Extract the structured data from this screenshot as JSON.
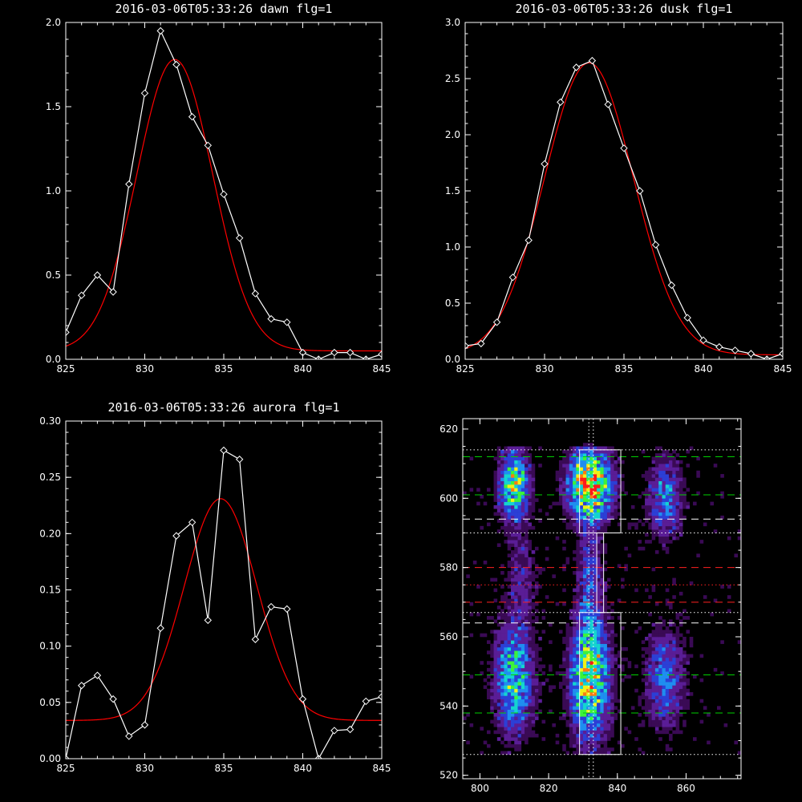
{
  "chart_data": [
    {
      "type": "line",
      "title": "2016-03-06T05:33:26 dawn flg=1",
      "xlim": [
        825,
        845
      ],
      "ylim": [
        0,
        2.0
      ],
      "xticks": [
        825,
        830,
        835,
        840,
        845
      ],
      "yticks": [
        0.0,
        0.5,
        1.0,
        1.5,
        2.0
      ],
      "xtick_labels": [
        "825",
        "830",
        "835",
        "840",
        "845"
      ],
      "ytick_labels": [
        "0.0",
        "0.5",
        "1.0",
        "1.5",
        "2.0"
      ],
      "series": [
        {
          "kind": "data",
          "color": "#ffffff",
          "marker": "diamond",
          "x": [
            825,
            826,
            827,
            828,
            829,
            830,
            831,
            832,
            833,
            834,
            835,
            836,
            837,
            838,
            839,
            840,
            841,
            842,
            843,
            844,
            845
          ],
          "y": [
            0.16,
            0.38,
            0.5,
            0.4,
            1.04,
            1.58,
            1.95,
            1.75,
            1.44,
            1.27,
            0.98,
            0.72,
            0.39,
            0.24,
            0.22,
            0.04,
            0.0,
            0.04,
            0.04,
            0.0,
            0.03
          ]
        },
        {
          "kind": "fit",
          "color": "#ff0000",
          "gaussian": {
            "a": 1.73,
            "mu": 831.9,
            "sigma": 2.4,
            "c": 0.05
          }
        }
      ]
    },
    {
      "type": "line",
      "title": "2016-03-06T05:33:26 dusk flg=1",
      "xlim": [
        825,
        845
      ],
      "ylim": [
        0,
        3.0
      ],
      "xticks": [
        825,
        830,
        835,
        840,
        845
      ],
      "yticks": [
        0.0,
        0.5,
        1.0,
        1.5,
        2.0,
        2.5,
        3.0
      ],
      "xtick_labels": [
        "825",
        "830",
        "835",
        "840",
        "845"
      ],
      "ytick_labels": [
        "0.0",
        "0.5",
        "1.0",
        "1.5",
        "2.0",
        "2.5",
        "3.0"
      ],
      "series": [
        {
          "kind": "data",
          "color": "#ffffff",
          "marker": "diamond",
          "x": [
            825,
            826,
            827,
            828,
            829,
            830,
            831,
            832,
            833,
            834,
            835,
            836,
            837,
            838,
            839,
            840,
            841,
            842,
            843,
            844,
            845
          ],
          "y": [
            0.12,
            0.14,
            0.33,
            0.73,
            1.06,
            1.74,
            2.29,
            2.6,
            2.66,
            2.27,
            1.88,
            1.5,
            1.02,
            0.66,
            0.37,
            0.17,
            0.11,
            0.08,
            0.05,
            0.0,
            0.05
          ]
        },
        {
          "kind": "fit",
          "color": "#ff0000",
          "gaussian": {
            "a": 2.6,
            "mu": 832.8,
            "sigma": 2.8,
            "c": 0.04
          }
        }
      ]
    },
    {
      "type": "line",
      "title": "2016-03-06T05:33:26 aurora flg=1",
      "xlim": [
        825,
        845
      ],
      "ylim": [
        0,
        0.3
      ],
      "xticks": [
        825,
        830,
        835,
        840,
        845
      ],
      "yticks": [
        0.0,
        0.05,
        0.1,
        0.15,
        0.2,
        0.25,
        0.3
      ],
      "xtick_labels": [
        "825",
        "830",
        "835",
        "840",
        "845"
      ],
      "ytick_labels": [
        "0.00",
        "0.05",
        "0.10",
        "0.15",
        "0.20",
        "0.25",
        "0.30"
      ],
      "series": [
        {
          "kind": "data",
          "color": "#ffffff",
          "marker": "diamond",
          "x": [
            825,
            826,
            827,
            828,
            829,
            830,
            831,
            832,
            833,
            834,
            835,
            836,
            837,
            838,
            839,
            840,
            841,
            842,
            843,
            844,
            845
          ],
          "y": [
            0.0,
            0.065,
            0.074,
            0.053,
            0.02,
            0.03,
            0.116,
            0.198,
            0.21,
            0.123,
            0.274,
            0.266,
            0.106,
            0.135,
            0.133,
            0.053,
            0.0,
            0.025,
            0.026,
            0.051,
            0.055
          ]
        },
        {
          "kind": "fit",
          "color": "#ff0000",
          "gaussian": {
            "a": 0.197,
            "mu": 834.8,
            "sigma": 2.3,
            "c": 0.034
          }
        }
      ]
    },
    {
      "type": "heatmap",
      "title": "",
      "xlim": [
        795,
        876
      ],
      "ylim": [
        519,
        623
      ],
      "xticks": [
        800,
        820,
        840,
        860
      ],
      "yticks": [
        520,
        540,
        560,
        580,
        600,
        620
      ],
      "xtick_labels": [
        "800",
        "820",
        "840",
        "860"
      ],
      "ytick_labels": [
        "520",
        "540",
        "560",
        "580",
        "600",
        "620"
      ],
      "colormap": [
        "#000000",
        "#3a0a55",
        "#5a1d96",
        "#2c3fd6",
        "#1f8ef0",
        "#14d4d0",
        "#3cf23c",
        "#f0f018",
        "#ff7a12",
        "#ff1a1a"
      ],
      "blobs": [
        {
          "x": 810,
          "y": 604,
          "sx": 3.0,
          "sy": 7,
          "amp": 0.72
        },
        {
          "x": 832,
          "y": 604,
          "sx": 4.5,
          "sy": 7,
          "amp": 0.95
        },
        {
          "x": 854,
          "y": 600,
          "sx": 3.5,
          "sy": 8,
          "amp": 0.42
        },
        {
          "x": 810,
          "y": 548,
          "sx": 4.0,
          "sy": 11,
          "amp": 0.58
        },
        {
          "x": 832,
          "y": 548,
          "sx": 4.0,
          "sy": 12,
          "amp": 0.8
        },
        {
          "x": 854,
          "y": 548,
          "sx": 4.0,
          "sy": 10,
          "amp": 0.4
        },
        {
          "x": 832,
          "y": 578,
          "sx": 2.5,
          "sy": 10,
          "amp": 0.32
        },
        {
          "x": 812,
          "y": 578,
          "sx": 3.0,
          "sy": 9,
          "amp": 0.22
        }
      ],
      "hlines": [
        {
          "y": 614,
          "color": "#ffffff",
          "style": "dotted"
        },
        {
          "y": 612,
          "color": "#00d000",
          "style": "dashed"
        },
        {
          "y": 601,
          "color": "#00d000",
          "style": "dashed"
        },
        {
          "y": 594,
          "color": "#ffffff",
          "style": "dashed"
        },
        {
          "y": 590,
          "color": "#ffffff",
          "style": "dotted"
        },
        {
          "y": 580,
          "color": "#ff2020",
          "style": "dashed"
        },
        {
          "y": 575,
          "color": "#ff2020",
          "style": "dotted"
        },
        {
          "y": 570,
          "color": "#ff2020",
          "style": "dashed"
        },
        {
          "y": 567,
          "color": "#ffffff",
          "style": "dotted"
        },
        {
          "y": 564,
          "color": "#ffffff",
          "style": "dashed"
        },
        {
          "y": 549,
          "color": "#00d000",
          "style": "dashed"
        },
        {
          "y": 538,
          "color": "#00d000",
          "style": "dashed"
        },
        {
          "y": 526,
          "color": "#ffffff",
          "style": "dotted"
        }
      ],
      "vlines": [
        {
          "x": 831.7,
          "color": "#ffffff",
          "style": "dotted"
        },
        {
          "x": 833.0,
          "color": "#ffffff",
          "style": "dotted"
        }
      ],
      "boxes": [
        {
          "x0": 829,
          "x1": 841,
          "y0": 590,
          "y1": 614,
          "color": "#ffffff"
        },
        {
          "x0": 834,
          "x1": 836,
          "y0": 567,
          "y1": 590,
          "color": "#ffffff"
        },
        {
          "x0": 829,
          "x1": 841,
          "y0": 526,
          "y1": 567,
          "color": "#ffffff"
        }
      ]
    }
  ]
}
